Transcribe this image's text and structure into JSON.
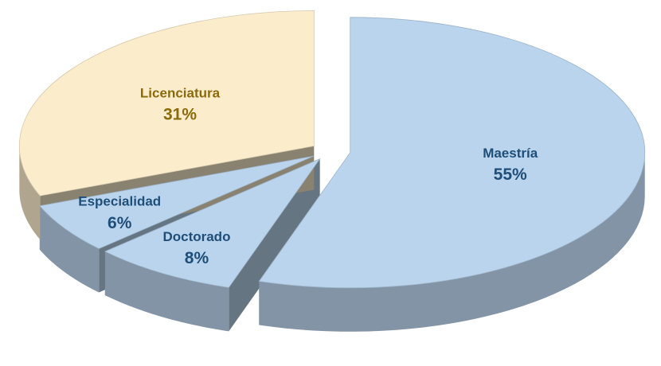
{
  "chart_data": {
    "type": "pie",
    "categories": [
      "Maestría",
      "Doctorado",
      "Especialidad",
      "Licenciatura"
    ],
    "values": [
      55,
      8,
      6,
      31
    ],
    "value_labels": [
      "55%",
      "8%",
      "6%",
      "31%"
    ],
    "colors": [
      "#b9d4ec",
      "#b9d4ec",
      "#b9d4ec",
      "#fbedcc"
    ],
    "label_colors": [
      "#1f4e79",
      "#1f4e79",
      "#1f4e79",
      "#8a6a0a"
    ]
  }
}
